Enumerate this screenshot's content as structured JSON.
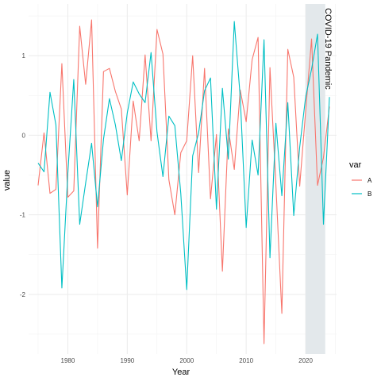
{
  "chart_data": {
    "type": "line",
    "xlabel": "Year",
    "ylabel": "value",
    "xlim": [
      1973.4,
      2025.2
    ],
    "ylim": [
      -2.75,
      1.65
    ],
    "x_ticks": [
      1980,
      1990,
      2000,
      2010,
      2020
    ],
    "y_ticks": [
      -2,
      -1,
      0,
      1
    ],
    "grid": true,
    "legend": {
      "title": "var",
      "position": "right"
    },
    "shaded_region": {
      "x_start": 2020,
      "x_end": 2023.3,
      "color": "#e3e8eb",
      "label": "COVID-19 Pandemic"
    },
    "x": [
      1975,
      1976,
      1977,
      1978,
      1979,
      1980,
      1981,
      1982,
      1983,
      1984,
      1985,
      1986,
      1987,
      1988,
      1989,
      1990,
      1991,
      1992,
      1993,
      1994,
      1995,
      1996,
      1997,
      1998,
      1999,
      2000,
      2001,
      2002,
      2003,
      2004,
      2005,
      2006,
      2007,
      2008,
      2009,
      2010,
      2011,
      2012,
      2013,
      2014,
      2015,
      2016,
      2017,
      2018,
      2019,
      2020,
      2021,
      2022,
      2023,
      2024
    ],
    "series": [
      {
        "name": "A",
        "color": "#F8766D",
        "values": [
          -0.63,
          0.03,
          -0.73,
          -0.68,
          0.9,
          -0.78,
          -0.7,
          1.37,
          0.64,
          1.45,
          -1.42,
          0.8,
          0.84,
          0.55,
          0.33,
          -0.75,
          0.43,
          -0.07,
          1.01,
          -0.07,
          1.33,
          1.02,
          -0.56,
          -1.0,
          -0.22,
          -0.07,
          1.0,
          -0.47,
          0.84,
          -0.8,
          0.01,
          -1.71,
          0.08,
          -0.43,
          0.57,
          0.17,
          0.95,
          1.23,
          -2.62,
          0.85,
          -0.63,
          -2.24,
          1.08,
          0.73,
          -0.64,
          0.3,
          1.21,
          -0.63,
          -0.28,
          0.36
        ]
      },
      {
        "name": "B",
        "color": "#00BFC4",
        "values": [
          -0.35,
          -0.46,
          0.54,
          0.13,
          -1.92,
          -0.48,
          0.7,
          -1.12,
          -0.6,
          -0.1,
          -0.9,
          -0.05,
          0.46,
          0.13,
          -0.32,
          0.28,
          0.67,
          0.52,
          0.41,
          1.04,
          0.04,
          -0.52,
          0.24,
          0.12,
          -0.73,
          -1.94,
          -0.26,
          0.03,
          0.56,
          0.72,
          -0.93,
          0.59,
          -0.3,
          1.43,
          0.48,
          -1.16,
          -0.06,
          -0.5,
          1.2,
          -1.54,
          0.15,
          -0.76,
          0.41,
          -1.01,
          -0.15,
          0.48,
          0.83,
          1.27,
          -1.12,
          0.48
        ]
      }
    ]
  }
}
